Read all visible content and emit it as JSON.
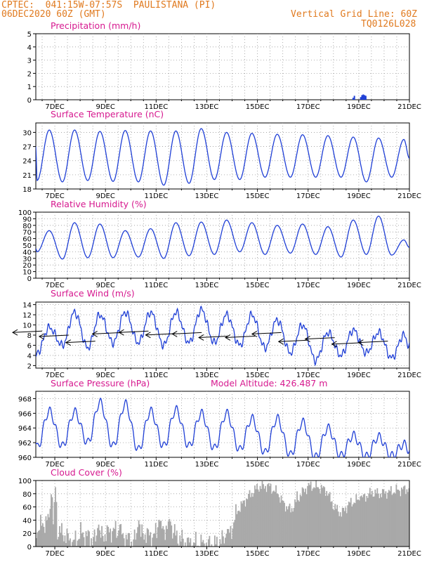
{
  "header": {
    "line1": "CPTEC:  041:15W-07:57S  PAULISTANA (PI)",
    "line2": "06DEC2020 60Z (GMT)",
    "grid_note": "Vertical Grid Line: 60Z",
    "code": "TQ0126L028"
  },
  "colors": {
    "header": "#e07a1f",
    "title": "#d6198f",
    "line": "#1f3fd6",
    "cloud": "#a9a9a9",
    "grid": "#9a9a9a",
    "axis": "#000000"
  },
  "x_ticks": [
    "7DEC",
    "9DEC",
    "11DEC",
    "13DEC",
    "15DEC",
    "17DEC",
    "19DEC",
    "21DEC"
  ],
  "chart_data": [
    {
      "id": "precip",
      "type": "bar",
      "title": "Precipitation (mm/h)",
      "ylim": [
        0,
        5
      ],
      "yticks": [
        "0",
        "1",
        "2",
        "3",
        "4",
        "5"
      ],
      "xlim": [
        6.25,
        21
      ],
      "events": [
        [
          18.75,
          0.15
        ],
        [
          18.8,
          0.3
        ],
        [
          19.05,
          0.2
        ],
        [
          19.1,
          0.35
        ],
        [
          19.15,
          0.4
        ],
        [
          19.2,
          0.35
        ],
        [
          19.25,
          0.3
        ]
      ]
    },
    {
      "id": "temp",
      "type": "line",
      "title": "Surface Temperature (nC)",
      "ylim": [
        18,
        32
      ],
      "yticks": [
        "18",
        "21",
        "24",
        "27",
        "30"
      ],
      "xlim": [
        6.25,
        21
      ],
      "min_max": [
        [
          19.8,
          30.5
        ],
        [
          19.5,
          30.5
        ],
        [
          19.8,
          30.2
        ],
        [
          19.6,
          30.4
        ],
        [
          19.5,
          30.3
        ],
        [
          18.8,
          30.3
        ],
        [
          19.2,
          30.8
        ],
        [
          20.0,
          30.0
        ],
        [
          20.0,
          29.8
        ],
        [
          20.5,
          29.6
        ],
        [
          20.5,
          29.5
        ],
        [
          20.5,
          29.3
        ],
        [
          20.5,
          29.0
        ],
        [
          19.5,
          28.8
        ],
        [
          20.5,
          28.5
        ]
      ],
      "start": 27.0
    },
    {
      "id": "rh",
      "type": "line",
      "title": "Relative Humidity (%)",
      "ylim": [
        0,
        100
      ],
      "yticks": [
        "0",
        "10",
        "20",
        "30",
        "40",
        "50",
        "60",
        "70",
        "80",
        "90",
        "100"
      ],
      "xlim": [
        6.25,
        21
      ],
      "min_max": [
        [
          40,
          72
        ],
        [
          29,
          84
        ],
        [
          31,
          82
        ],
        [
          31,
          72
        ],
        [
          32,
          75
        ],
        [
          30,
          84
        ],
        [
          34,
          85
        ],
        [
          36,
          88
        ],
        [
          40,
          84
        ],
        [
          36,
          80
        ],
        [
          38,
          82
        ],
        [
          36,
          78
        ],
        [
          32,
          88
        ],
        [
          36,
          94
        ],
        [
          35,
          58
        ]
      ],
      "start": 45
    },
    {
      "id": "wind",
      "type": "line",
      "title": "Surface Wind (m/s)",
      "ylim": [
        1.5,
        14.5
      ],
      "yticks": [
        "2",
        "4",
        "6",
        "8",
        "10",
        "12",
        "14"
      ],
      "xlim": [
        6.25,
        21
      ],
      "min_max": [
        [
          4.5,
          9.5
        ],
        [
          6.0,
          12.5
        ],
        [
          5.5,
          12.0
        ],
        [
          6.5,
          12.5
        ],
        [
          6.5,
          12.5
        ],
        [
          6.0,
          12.5
        ],
        [
          6.5,
          13.0
        ],
        [
          6.5,
          12.0
        ],
        [
          6.0,
          12.0
        ],
        [
          5.5,
          11.0
        ],
        [
          4.5,
          10.0
        ],
        [
          3.0,
          8.5
        ],
        [
          4.0,
          9.0
        ],
        [
          4.5,
          8.5
        ],
        [
          3.5,
          8.0
        ]
      ],
      "start": 3.5,
      "arrows_y": [
        8.8,
        8.0,
        6.8,
        8.5,
        8.8,
        8.3,
        8.5,
        7.8,
        7.8,
        8.5,
        7.0,
        7.5,
        6.5,
        6.8
      ]
    },
    {
      "id": "press",
      "type": "line",
      "title": "Surface Pressure (hPa)",
      "subtitle": "Model Altitude: 426.487 m",
      "ylim": [
        960,
        969
      ],
      "yticks": [
        "960",
        "962",
        "964",
        "966",
        "968"
      ],
      "xlim": [
        6.25,
        21
      ],
      "min_max": [
        [
          961.3,
          966.3
        ],
        [
          961.5,
          966.2
        ],
        [
          962.0,
          967.5
        ],
        [
          961.5,
          967.3
        ],
        [
          961.0,
          966.3
        ],
        [
          961.5,
          966.5
        ],
        [
          961.5,
          966.0
        ],
        [
          961.2,
          966.0
        ],
        [
          961.0,
          965.3
        ],
        [
          960.6,
          965.3
        ],
        [
          960.3,
          964.8
        ],
        [
          960.0,
          964.0
        ],
        [
          960.2,
          963.0
        ],
        [
          960.1,
          962.8
        ],
        [
          960.2,
          961.8
        ]
      ],
      "start": 961.8
    },
    {
      "id": "cloud",
      "type": "area",
      "title": "Cloud Cover (%)",
      "ylim": [
        0,
        100
      ],
      "yticks": [
        "0",
        "20",
        "40",
        "60",
        "80",
        "100"
      ],
      "xlim": [
        6.25,
        21
      ],
      "base": [
        [
          6.25,
          25
        ],
        [
          6.7,
          40
        ],
        [
          7.0,
          25
        ],
        [
          7.3,
          20
        ],
        [
          7.7,
          5
        ],
        [
          8.0,
          20
        ],
        [
          8.3,
          15
        ],
        [
          8.6,
          10
        ],
        [
          9.0,
          20
        ],
        [
          9.3,
          25
        ],
        [
          9.7,
          15
        ],
        [
          10.0,
          8
        ],
        [
          10.5,
          20
        ],
        [
          10.8,
          15
        ],
        [
          11.2,
          25
        ],
        [
          11.5,
          30
        ],
        [
          11.8,
          15
        ],
        [
          12.2,
          5
        ],
        [
          12.6,
          5
        ],
        [
          13.0,
          3
        ],
        [
          13.3,
          3
        ],
        [
          13.6,
          10
        ],
        [
          13.9,
          20
        ],
        [
          14.2,
          55
        ],
        [
          14.6,
          75
        ],
        [
          15.0,
          90
        ],
        [
          15.4,
          92
        ],
        [
          15.8,
          80
        ],
        [
          16.0,
          65
        ],
        [
          16.3,
          55
        ],
        [
          16.7,
          80
        ],
        [
          17.0,
          92
        ],
        [
          17.4,
          90
        ],
        [
          17.7,
          85
        ],
        [
          18.0,
          60
        ],
        [
          18.3,
          50
        ],
        [
          18.6,
          65
        ],
        [
          18.9,
          70
        ],
        [
          19.2,
          75
        ],
        [
          19.5,
          82
        ],
        [
          19.8,
          80
        ],
        [
          20.1,
          82
        ],
        [
          20.5,
          85
        ],
        [
          21.0,
          88
        ]
      ],
      "peaks": [
        [
          6.85,
          88
        ],
        [
          7.0,
          90
        ],
        [
          8.7,
          35
        ],
        [
          9.55,
          35
        ],
        [
          10.3,
          42
        ],
        [
          11.1,
          45
        ],
        [
          11.55,
          40
        ],
        [
          13.8,
          28
        ],
        [
          14.35,
          65
        ],
        [
          16.55,
          88
        ],
        [
          19.05,
          80
        ]
      ]
    }
  ]
}
